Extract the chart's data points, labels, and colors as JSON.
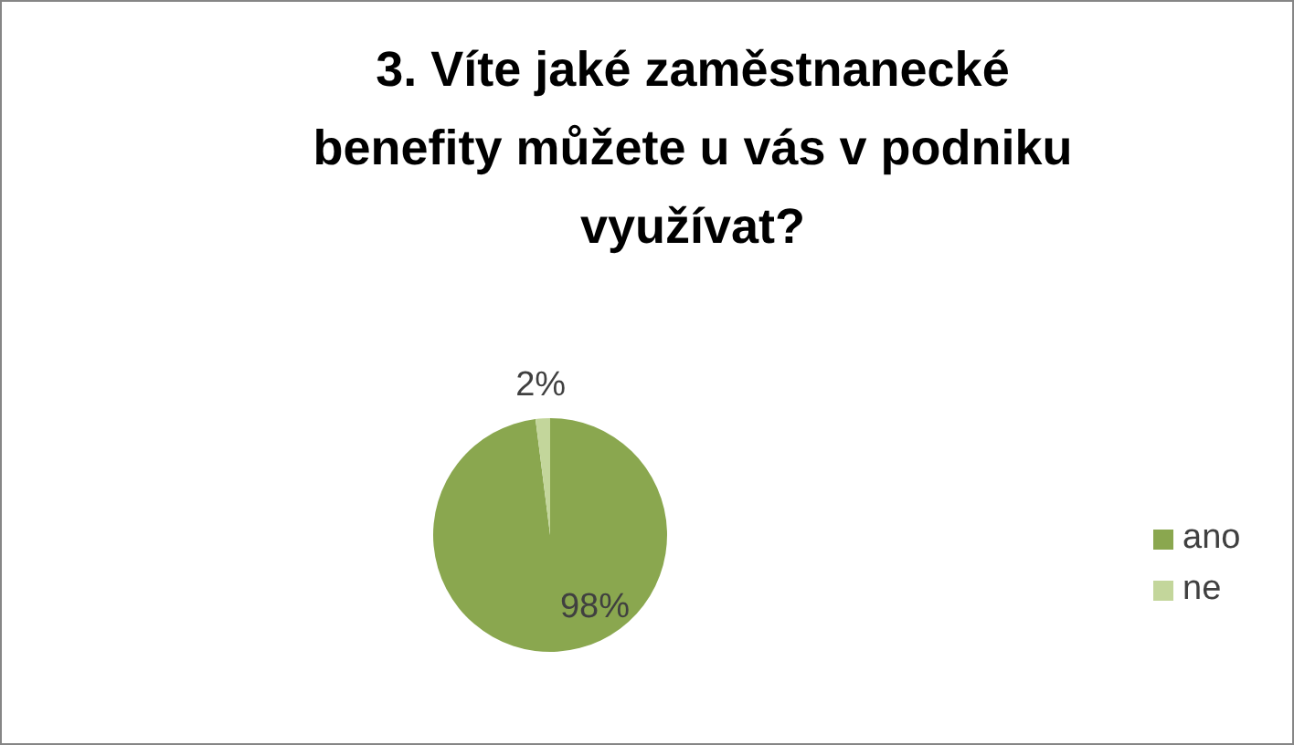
{
  "chart_data": {
    "type": "pie",
    "title": "3. Víte jaké zaměstnanecké benefity můžete u vás v podniku využívat?",
    "categories": [
      "ano",
      "ne"
    ],
    "values": [
      98,
      2
    ],
    "colors": [
      "#8aa74f",
      "#c3d69b"
    ],
    "value_labels": [
      "98%",
      "2%"
    ],
    "legend": "right"
  }
}
